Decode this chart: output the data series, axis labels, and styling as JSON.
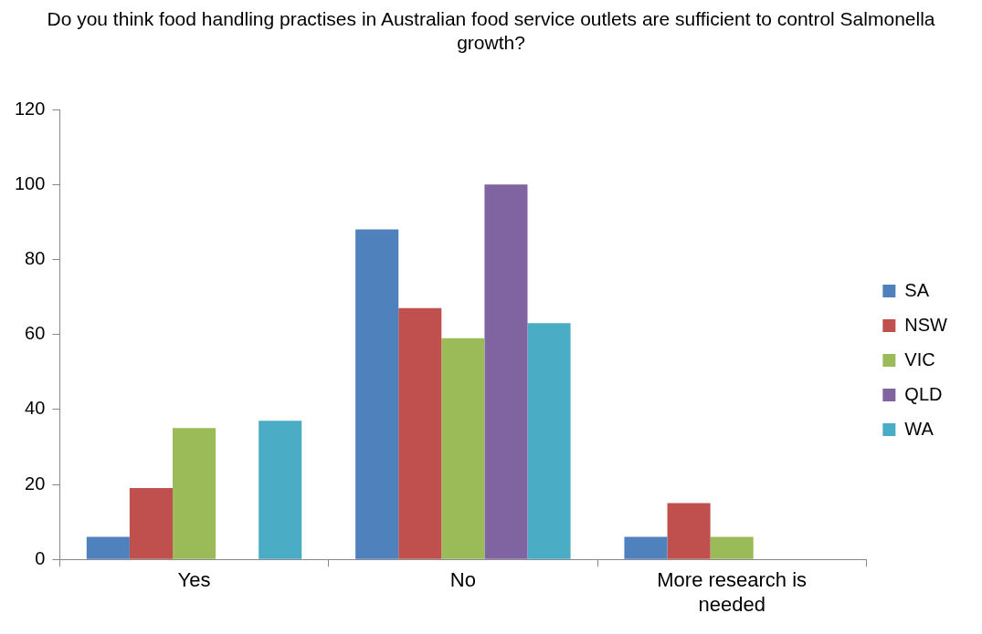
{
  "chart_data": {
    "type": "bar",
    "title": "Do you think food handling practises in Australian food service outlets are sufficient to control Salmonella growth?",
    "categories": [
      "Yes",
      "No",
      "More research is needed"
    ],
    "series": [
      {
        "name": "SA",
        "color": "#4f81bd",
        "values": [
          6,
          88,
          6
        ]
      },
      {
        "name": "NSW",
        "color": "#c0504d",
        "values": [
          19,
          67,
          15
        ]
      },
      {
        "name": "VIC",
        "color": "#9bbb59",
        "values": [
          35,
          59,
          6
        ]
      },
      {
        "name": "QLD",
        "color": "#8064a2",
        "values": [
          0,
          100,
          0
        ]
      },
      {
        "name": "WA",
        "color": "#4bacc6",
        "values": [
          37,
          63,
          0
        ]
      }
    ],
    "ylim": [
      0,
      120
    ],
    "yticks": [
      0,
      20,
      40,
      60,
      80,
      100,
      120
    ],
    "grid": false,
    "legend": "right"
  }
}
